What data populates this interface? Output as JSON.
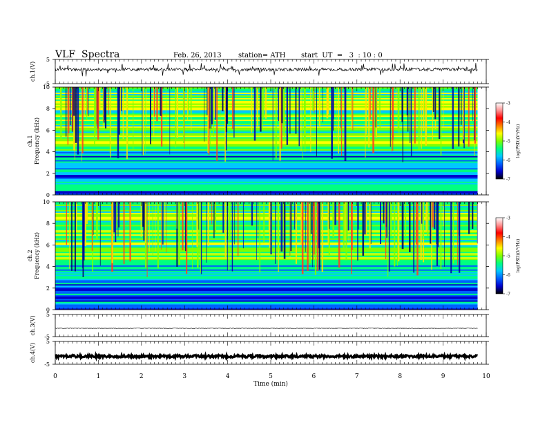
{
  "header": {
    "title": "VLF  Spectra",
    "date": "Feb. 26, 2013",
    "station": "station= ATH",
    "start": "start  UT  =   3  : 10 : 0"
  },
  "chart_data": [
    {
      "type": "line",
      "name": "ch1-waveform",
      "ylabel": "ch.1(V)",
      "ylim": [
        -5,
        5
      ],
      "yticks": [
        "5",
        "-5"
      ],
      "xlim": [
        0,
        10
      ]
    },
    {
      "type": "heatmap",
      "name": "ch1-spectrogram",
      "ylabel": [
        "ch.1",
        "Frequency  (kHz)"
      ],
      "ylim": [
        0,
        10
      ],
      "yticks": [
        "0",
        "2",
        "4",
        "6",
        "8",
        "10"
      ],
      "xlim": [
        0,
        10
      ],
      "data_end_min": 9.8,
      "colorbar": {
        "label": "log(PSD)(V²/Hz)",
        "range": [
          -7,
          -3
        ],
        "ticks": [
          "-3",
          "-4",
          "-5",
          "-6",
          "-7"
        ],
        "colors": [
          "#000000",
          "#0000cc",
          "#0060ff",
          "#00c8ff",
          "#00ff80",
          "#80ff00",
          "#ffff00",
          "#ff8000",
          "#ff0000",
          "#ff9090",
          "#ffffff"
        ]
      }
    },
    {
      "type": "heatmap",
      "name": "ch2-spectrogram",
      "ylabel": [
        "ch.2",
        "Frequency  (kHz)"
      ],
      "ylim": [
        0,
        10
      ],
      "yticks": [
        "0",
        "2",
        "4",
        "6",
        "8",
        "10"
      ],
      "xlim": [
        0,
        10
      ],
      "data_end_min": 9.8,
      "colorbar": {
        "label": "log(PSD)(V²/Hz)",
        "range": [
          -7,
          -3
        ],
        "ticks": [
          "-3",
          "-4",
          "-5",
          "-6",
          "-7"
        ],
        "colors": [
          "#000000",
          "#0000cc",
          "#0060ff",
          "#00c8ff",
          "#00ff80",
          "#80ff00",
          "#ffff00",
          "#ff8000",
          "#ff0000",
          "#ff9090",
          "#ffffff"
        ]
      }
    },
    {
      "type": "line",
      "name": "ch3-waveform",
      "ylabel": "ch.3(V)",
      "ylim": [
        -5,
        5
      ],
      "yticks": [
        "5",
        "-5"
      ],
      "xlim": [
        0,
        10
      ]
    },
    {
      "type": "line",
      "name": "ch4-waveform",
      "ylabel": "ch.4(V)",
      "ylim": [
        -5,
        5
      ],
      "yticks": [
        "5",
        "-5"
      ],
      "xlim": [
        0,
        10
      ]
    }
  ],
  "xaxis": {
    "label": "Time  (min)",
    "ticks": [
      "0",
      "1",
      "2",
      "3",
      "4",
      "5",
      "6",
      "7",
      "8",
      "9",
      "10"
    ],
    "range": [
      0,
      10
    ]
  }
}
